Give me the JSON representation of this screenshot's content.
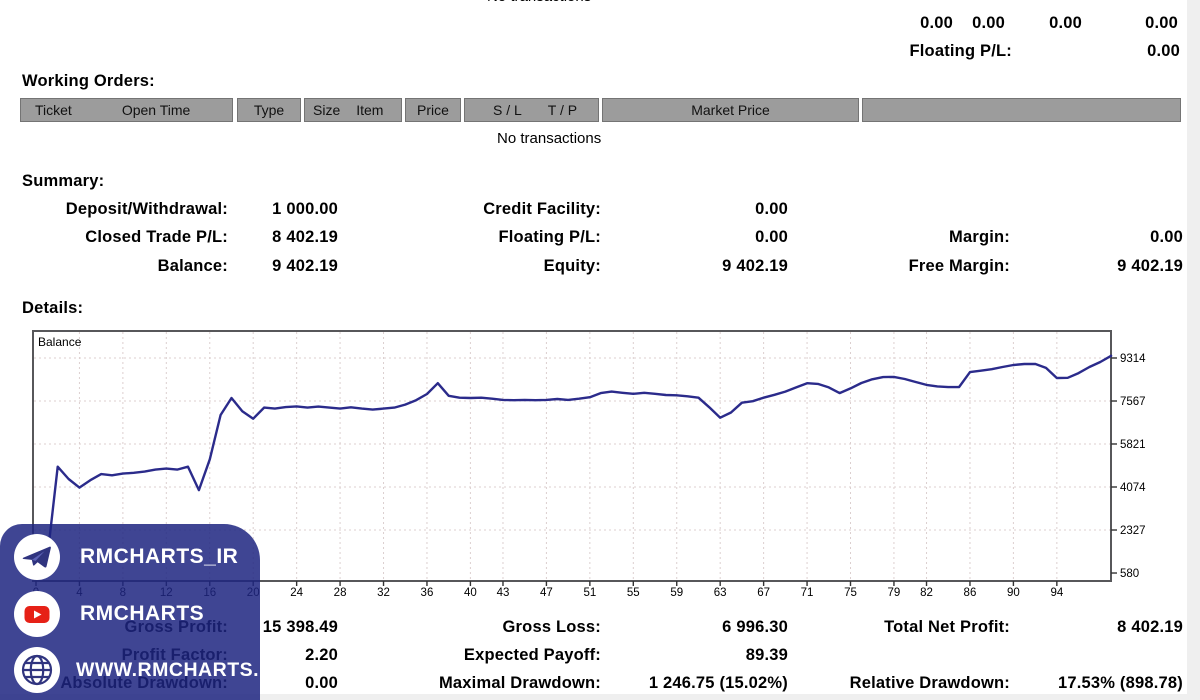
{
  "colors": {
    "line": "#2b2b8b",
    "grid": "#dccfcf",
    "chart_border": "#57575a",
    "header_fill": "#9c9c9c",
    "header_border": "#747474",
    "overlay_bg": "#3f4490",
    "youtube_red": "#e62117",
    "icon_ink": "#30347f"
  },
  "open_trades": {
    "partial_text": "No transactions",
    "totals_row": [
      "0.00",
      "0.00",
      "0.00",
      "0.00"
    ],
    "floating_pl_label": "Floating P/L:",
    "floating_pl_value": "0.00"
  },
  "working_orders": {
    "title": "Working Orders:",
    "header_cells": [
      {
        "labels": [
          "Ticket",
          "Open Time"
        ]
      },
      {
        "labels": [
          "Type"
        ]
      },
      {
        "labels": [
          "Size",
          "Item"
        ]
      },
      {
        "labels": [
          "Price"
        ]
      },
      {
        "labels": [
          "S / L",
          "T / P"
        ]
      },
      {
        "labels": [
          "Market Price"
        ]
      },
      {
        "labels": []
      }
    ],
    "empty_text": "No transactions"
  },
  "summary": {
    "title": "Summary:",
    "rows": [
      [
        "Deposit/Withdrawal:",
        "1 000.00",
        "Credit Facility:",
        "0.00",
        "",
        ""
      ],
      [
        "Closed Trade P/L:",
        "8 402.19",
        "Floating P/L:",
        "0.00",
        "Margin:",
        "0.00"
      ],
      [
        "Balance:",
        "9 402.19",
        "Equity:",
        "9 402.19",
        "Free Margin:",
        "9 402.19"
      ]
    ]
  },
  "details": {
    "title": "Details:"
  },
  "chart_data": {
    "type": "line",
    "title": "Balance",
    "x_tick_labels": [
      "0",
      "4",
      "8",
      "12",
      "16",
      "20",
      "24",
      "28",
      "32",
      "36",
      "40",
      "43",
      "47",
      "51",
      "55",
      "59",
      "63",
      "67",
      "71",
      "75",
      "79",
      "82",
      "86",
      "90",
      "94"
    ],
    "x_tick_trades": [
      0,
      4,
      8,
      12,
      16,
      20,
      24,
      28,
      32,
      36,
      40,
      43,
      47,
      51,
      55,
      59,
      63,
      67,
      71,
      75,
      79,
      82,
      86,
      90,
      94
    ],
    "y_ticks": [
      580,
      2327,
      4074,
      5821,
      7567,
      9314
    ],
    "ylim": [
      255,
      10400
    ],
    "xlim": [
      0,
      99
    ],
    "grid": "dashed",
    "legend_position": "top-left-inside",
    "values": [
      1000,
      1050,
      4900,
      4400,
      4050,
      4350,
      4600,
      4550,
      4620,
      4650,
      4700,
      4780,
      4820,
      4780,
      4900,
      3950,
      5200,
      7000,
      7690,
      7150,
      6850,
      7300,
      7260,
      7320,
      7350,
      7300,
      7340,
      7300,
      7260,
      7310,
      7260,
      7220,
      7260,
      7300,
      7420,
      7600,
      7850,
      8290,
      7780,
      7700,
      7690,
      7700,
      7660,
      7610,
      7600,
      7610,
      7600,
      7610,
      7650,
      7610,
      7660,
      7720,
      7890,
      7950,
      7900,
      7860,
      7900,
      7860,
      7810,
      7800,
      7760,
      7700,
      7310,
      6890,
      7100,
      7500,
      7560,
      7700,
      7820,
      7950,
      8120,
      8290,
      8260,
      8120,
      7890,
      8080,
      8300,
      8450,
      8540,
      8545,
      8460,
      8340,
      8220,
      8160,
      8130,
      8135,
      8740,
      8800,
      8860,
      8950,
      9030,
      9070,
      9075,
      8910,
      8500,
      8510,
      8700,
      8950,
      9150,
      9402
    ],
    "final_balance": "9 402.19"
  },
  "stats": {
    "rows": [
      [
        "Gross Profit:",
        "15 398.49",
        "Gross Loss:",
        "6 996.30",
        "Total Net Profit:",
        "8 402.19"
      ],
      [
        "Profit Factor:",
        "2.20",
        "Expected Payoff:",
        "89.39",
        "",
        ""
      ],
      [
        "Absolute Drawdown:",
        "0.00",
        "Maximal Drawdown:",
        "1 246.75 (15.02%)",
        "Relative Drawdown:",
        "17.53% (898.78)"
      ]
    ]
  },
  "watermark": {
    "items": [
      {
        "icon": "telegram-icon",
        "label": "RMCHARTS_IR"
      },
      {
        "icon": "youtube-icon",
        "label": "RMCHARTS"
      },
      {
        "icon": "globe-icon",
        "label": "WWW.RMCHARTS.IR"
      }
    ]
  }
}
